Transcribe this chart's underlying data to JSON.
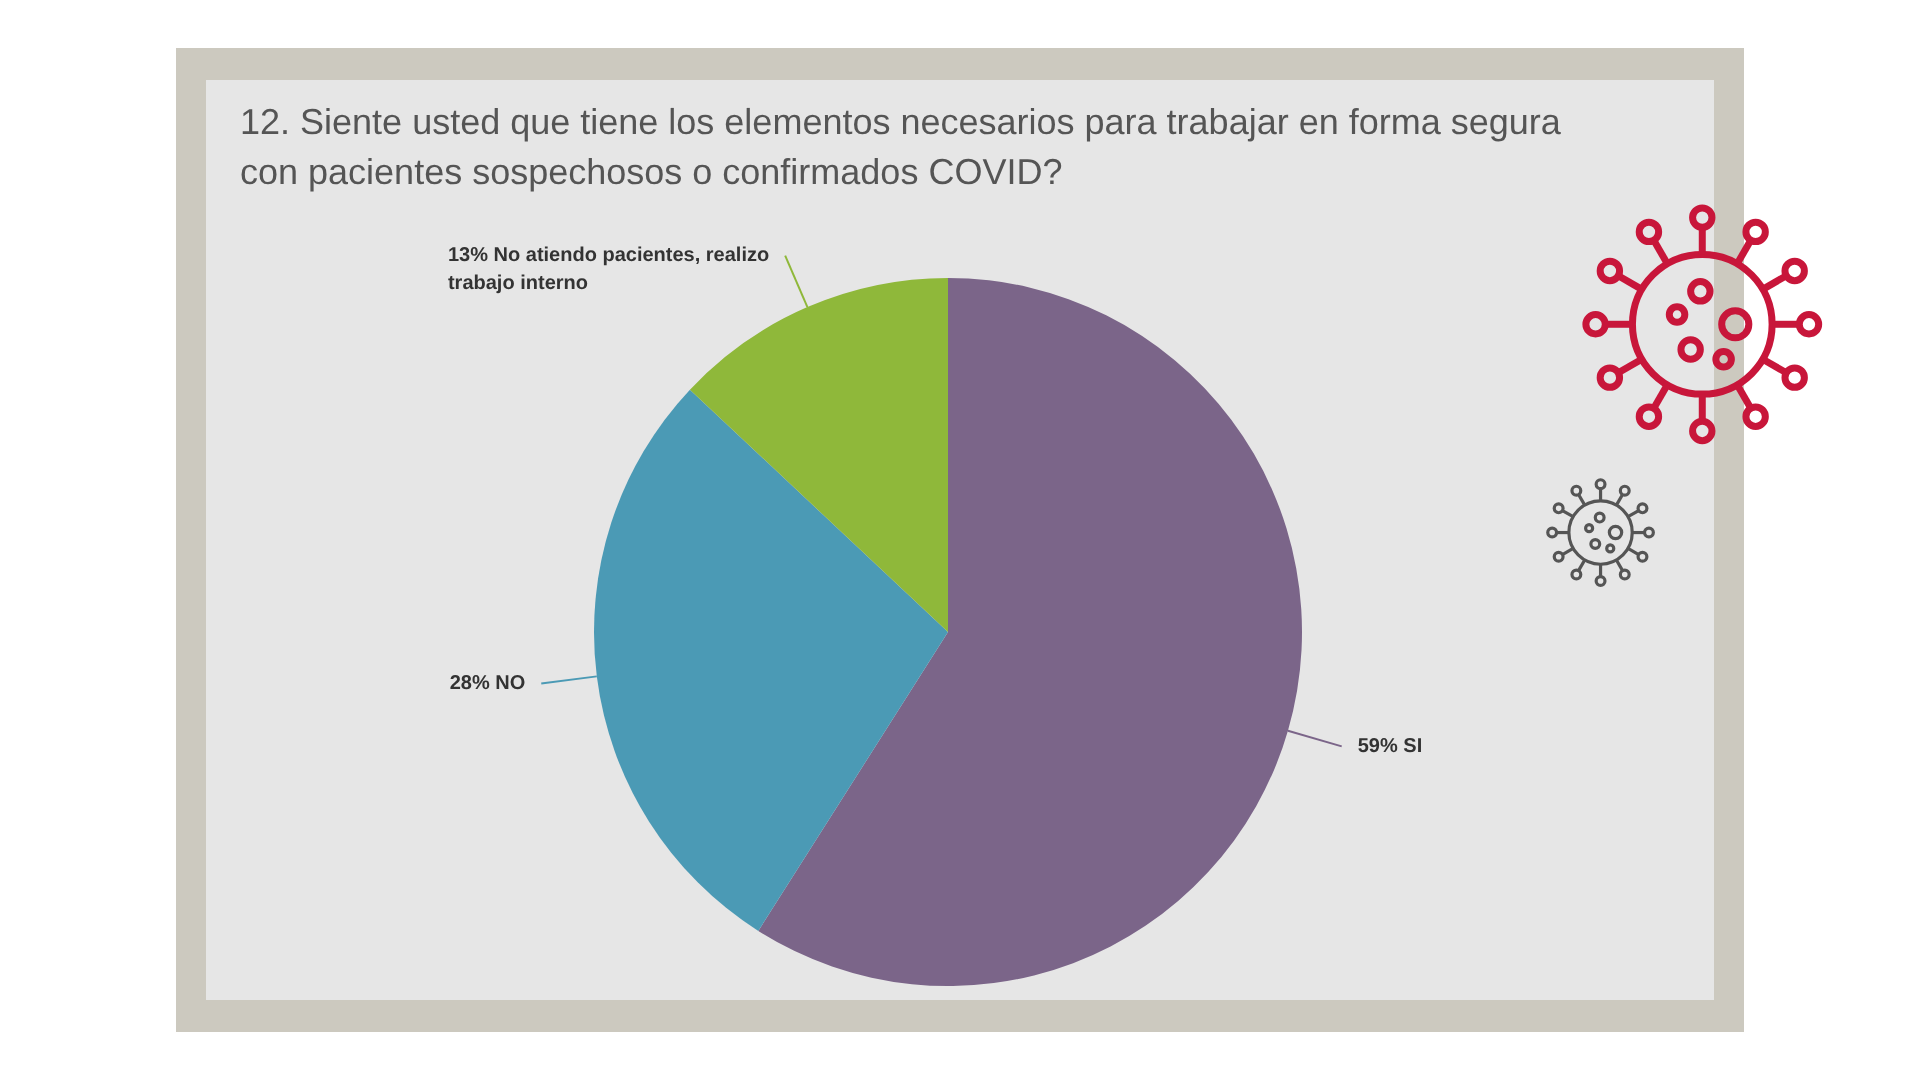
{
  "chart_data": {
    "type": "pie",
    "title": "12. Siente usted que tiene los elementos necesarios para trabajar en forma segura con pacientes sospechosos o confirmados COVID?",
    "categories": [
      "59% SI",
      "28% NO",
      "13% No atiendo pacientes, realizo trabajo interno"
    ],
    "values": [
      59,
      28,
      13
    ],
    "colors": [
      "#7b6589",
      "#4b9ab5",
      "#8fb83a"
    ],
    "legend": false
  }
}
